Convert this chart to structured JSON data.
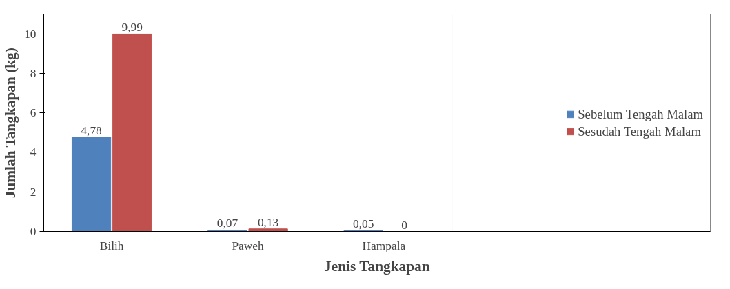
{
  "chart_data": {
    "type": "bar",
    "xlabel": "Jenis Tangkapan",
    "ylabel": "Jumlah Tangkapan (kg)",
    "categories": [
      "Bilih",
      "Paweh",
      "Hampala"
    ],
    "series": [
      {
        "name": "Sebelum Tengah Malam",
        "color": "#4f81bd",
        "values": [
          4.78,
          0.07,
          0.05
        ],
        "value_labels": [
          "4,78",
          "0,07",
          "0,05"
        ]
      },
      {
        "name": "Sesudah Tengah Malam",
        "color": "#c0504d",
        "values": [
          9.99,
          0.13,
          0
        ],
        "value_labels": [
          "9,99",
          "0,13",
          "0"
        ]
      }
    ],
    "ylim": [
      0,
      11
    ],
    "yticks": [
      0,
      2,
      4,
      6,
      8,
      10
    ],
    "grid": false,
    "legend": "right"
  }
}
